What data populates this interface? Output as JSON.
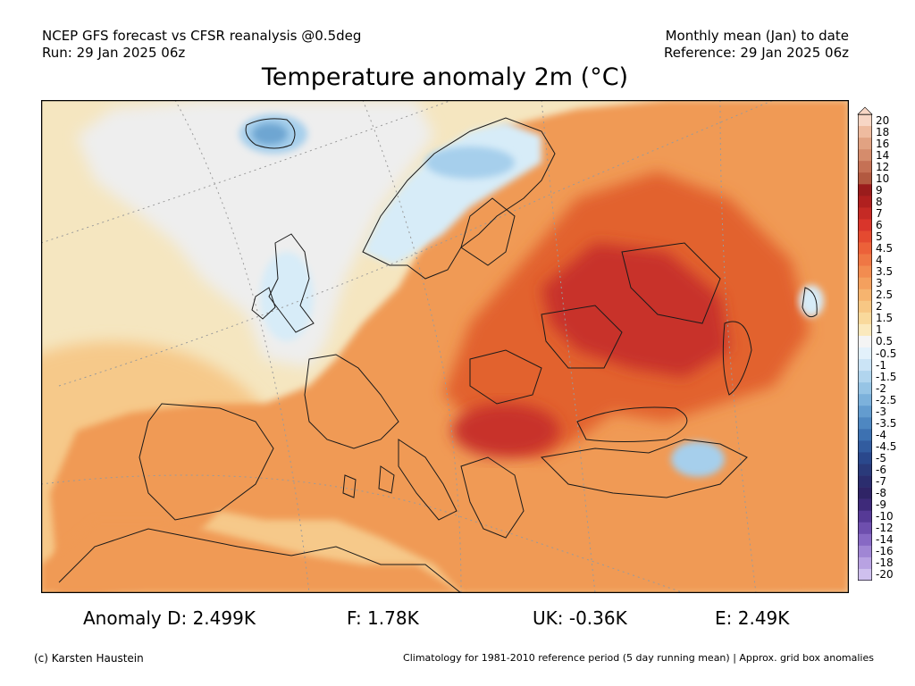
{
  "header": {
    "source_line": "NCEP GFS forecast vs CFSR reanalysis @0.5deg",
    "run_line": "Run: 29 Jan 2025 06z",
    "period_line": "Monthly mean (Jan) to date",
    "reference_line": "Reference: 29 Jan 2025 06z"
  },
  "title": "Temperature anomaly 2m (°C)",
  "map": {
    "region": "Europe",
    "colors": {
      "ocean_cool": "#f5e6c0",
      "ocean_warm": "#f6c98a",
      "land_warm": "#f09a55",
      "land_hot": "#e2622f",
      "core_hot": "#c8322a",
      "core_very_hot": "#a8241f",
      "neutral": "#eeeeee",
      "cold_light": "#d7ecf8",
      "cold_mid": "#a6cfec",
      "cold_deep": "#6ea6d2",
      "border_line": "#1a1a1a",
      "grid_line": "#9a9a9a"
    }
  },
  "colorbar": {
    "labels": [
      "20",
      "18",
      "16",
      "14",
      "12",
      "10",
      "9",
      "8",
      "7",
      "6",
      "5",
      "4.5",
      "4",
      "3.5",
      "3",
      "2.5",
      "2",
      "1.5",
      "1",
      "0.5",
      "-0.5",
      "-1",
      "-1.5",
      "-2",
      "-2.5",
      "-3",
      "-3.5",
      "-4",
      "-4.5",
      "-5",
      "-6",
      "-7",
      "-8",
      "-9",
      "-10",
      "-12",
      "-14",
      "-16",
      "-18",
      "-20"
    ],
    "colors": [
      "#f7d6c5",
      "#eebb9f",
      "#e1a282",
      "#d58c6c",
      "#c57155",
      "#b25940",
      "#9a1c1c",
      "#b0201f",
      "#c52a25",
      "#d9352b",
      "#e44a30",
      "#ec6139",
      "#ef7744",
      "#f28c50",
      "#f4a05e",
      "#f6b46f",
      "#f7c784",
      "#f9d99c",
      "#fbe9bd",
      "#f4f4f4",
      "#e3f1fb",
      "#cbe4f6",
      "#b1d5ee",
      "#96c4e5",
      "#7cb1db",
      "#639ccf",
      "#4e87c1",
      "#3d71b1",
      "#325c9f",
      "#2a488c",
      "#2a3a7a",
      "#2b2d6e",
      "#2f2466",
      "#3e2a7a",
      "#563a96",
      "#6e4fae",
      "#8769c4",
      "#a086d4",
      "#b8a2e2",
      "#cfc0ee"
    ]
  },
  "stats": {
    "anomaly_d": "Anomaly D: 2.499K",
    "f": "F: 1.78K",
    "uk": "UK: -0.36K",
    "e": "E: 2.49K"
  },
  "footer": {
    "credit": "(c) Karsten Haustein",
    "note": "Climatology for 1981-2010 reference period (5 day running mean) | Approx. grid box anomalies"
  }
}
